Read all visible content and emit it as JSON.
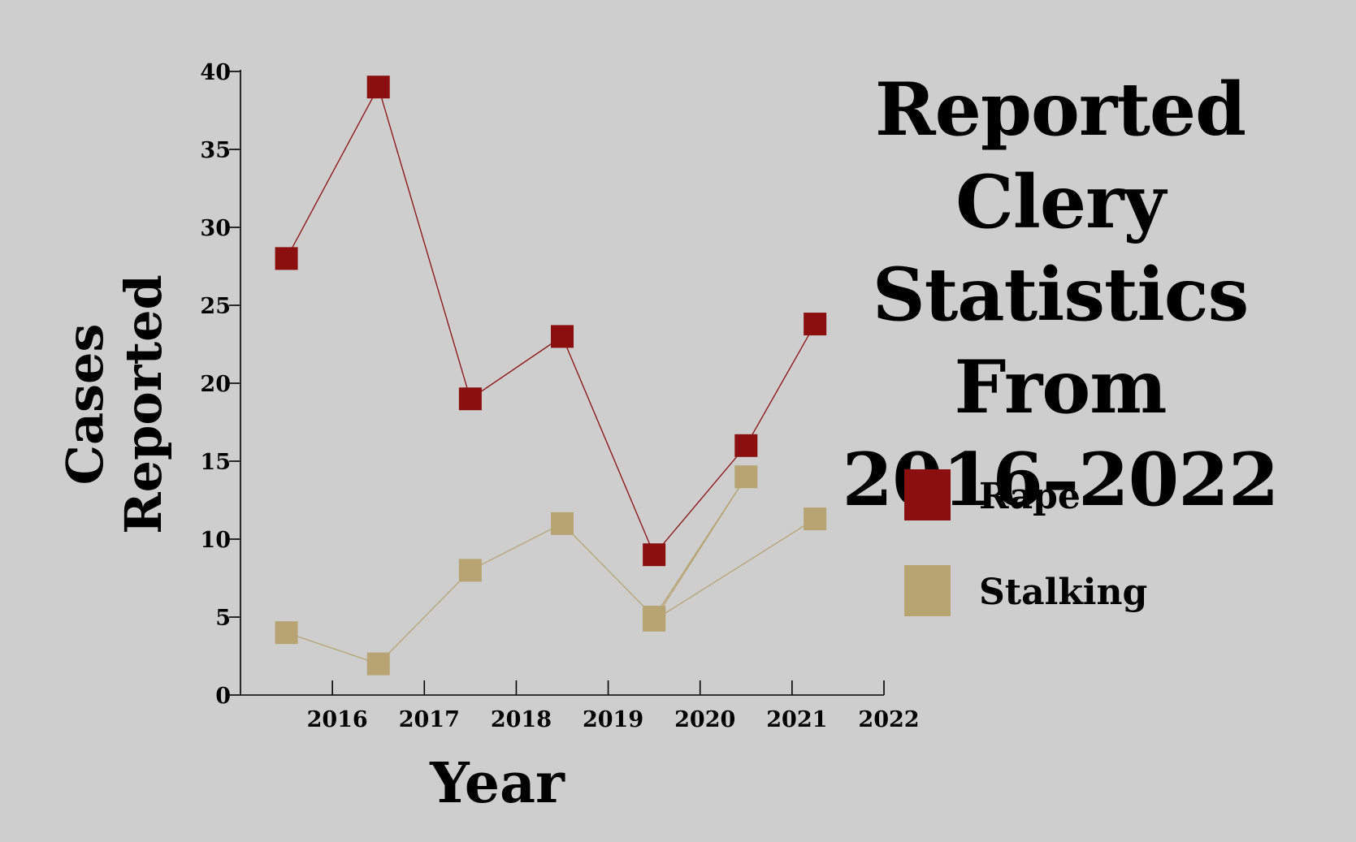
{
  "chart_data": {
    "type": "line",
    "title": "Reported Clery Statistics From 2016–2022",
    "title_lines": [
      "Reported Clery",
      "Statistics From",
      "2016–2022"
    ],
    "xlabel": "Year",
    "ylabel_lines": [
      "Cases",
      "Reported"
    ],
    "x_ticks": [
      "2016",
      "2017",
      "2018",
      "2019",
      "2020",
      "2021",
      "2022"
    ],
    "y_ticks": [
      0,
      5,
      10,
      15,
      20,
      25,
      30,
      35,
      40
    ],
    "ylim": [
      0,
      40
    ],
    "xlim": [
      2015.0,
      2022.0
    ],
    "grid": false,
    "legend_position": "right",
    "series": [
      {
        "name": "Rape",
        "color": "#8b0f0f",
        "points": [
          {
            "x": 2015.5,
            "y": 28
          },
          {
            "x": 2016.5,
            "y": 39
          },
          {
            "x": 2017.5,
            "y": 19
          },
          {
            "x": 2018.5,
            "y": 23
          },
          {
            "x": 2019.5,
            "y": 9
          },
          {
            "x": 2020.5,
            "y": 16
          },
          {
            "x": 2021.25,
            "y": 23.8
          }
        ]
      },
      {
        "name": "Stalking",
        "color": "#b8a472",
        "points": [
          {
            "x": 2015.5,
            "y": 4
          },
          {
            "x": 2016.5,
            "y": 2
          },
          {
            "x": 2017.5,
            "y": 8
          },
          {
            "x": 2018.5,
            "y": 11
          },
          {
            "x": 2019.5,
            "y": 5
          },
          {
            "x": 2020.5,
            "y": 14
          },
          {
            "x": 2019.5,
            "y": 4.8
          },
          {
            "x": 2021.25,
            "y": 11.3
          }
        ]
      }
    ]
  }
}
